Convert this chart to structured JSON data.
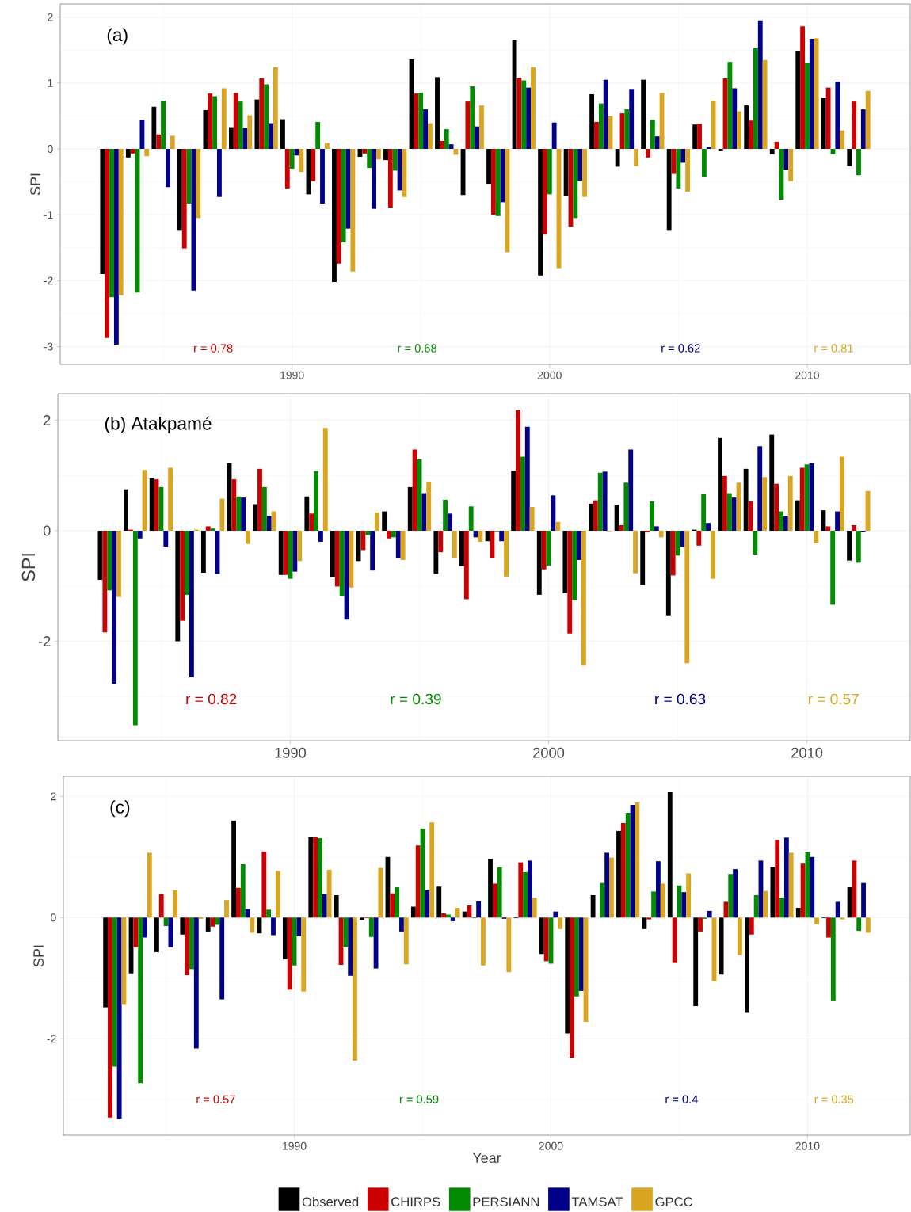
{
  "chart_data": [
    {
      "type": "bar",
      "title": "(a)",
      "ylabel": "SPI",
      "x": [
        1983,
        1984,
        1985,
        1986,
        1987,
        1988,
        1989,
        1990,
        1991,
        1992,
        1993,
        1994,
        1995,
        1996,
        1997,
        1998,
        1999,
        2000,
        2001,
        2002,
        2003,
        2004,
        2005,
        2006,
        2007,
        2008,
        2009,
        2010,
        2011,
        2012
      ],
      "series": [
        {
          "color": "#000000",
          "values": [
            -1.9,
            -0.13,
            0.64,
            -1.23,
            0.59,
            0.33,
            0.75,
            0.45,
            -0.69,
            -2.02,
            -0.12,
            -0.17,
            1.36,
            1.09,
            -0.7,
            -0.53,
            1.65,
            -1.92,
            -0.72,
            0.83,
            -0.27,
            1.05,
            -1.23,
            0.37,
            -0.03,
            0.66,
            -0.08,
            1.49,
            0.77,
            -0.26
          ]
        },
        {
          "color": "#cc0000",
          "values": [
            -2.87,
            -0.07,
            0.22,
            -1.51,
            0.84,
            0.85,
            1.07,
            -0.6,
            -0.49,
            -1.74,
            -0.07,
            -0.89,
            0.84,
            0.12,
            0.72,
            -1.0,
            1.08,
            -1.3,
            -1.18,
            0.41,
            0.54,
            -0.13,
            -0.38,
            0.38,
            1.07,
            0.43,
            0.11,
            1.86,
            0.93,
            0.72
          ]
        },
        {
          "color": "#008b00",
          "values": [
            -2.25,
            -2.18,
            0.73,
            -0.83,
            0.8,
            0.72,
            0.98,
            -0.3,
            0.41,
            -1.42,
            -0.29,
            -0.33,
            0.85,
            0.3,
            0.95,
            -1.02,
            1.04,
            -0.69,
            -1.05,
            0.69,
            0.6,
            0.44,
            -0.6,
            -0.43,
            1.32,
            1.53,
            -0.77,
            1.3,
            -0.08,
            -0.4
          ]
        },
        {
          "color": "#00008b",
          "values": [
            -2.97,
            0.44,
            -0.58,
            -2.15,
            -0.73,
            0.32,
            0.39,
            -0.1,
            -0.83,
            -1.21,
            -0.91,
            -0.63,
            0.6,
            0.07,
            0.34,
            -0.81,
            0.93,
            0.4,
            -0.48,
            1.05,
            0.91,
            0.19,
            -0.21,
            0.03,
            0.92,
            1.95,
            -0.32,
            1.67,
            1.02,
            0.6
          ]
        },
        {
          "color": "#daa520",
          "values": [
            -2.22,
            -0.11,
            0.2,
            -1.05,
            0.92,
            0.51,
            1.24,
            -0.35,
            0.09,
            -1.86,
            -0.16,
            -0.73,
            0.39,
            -0.09,
            0.66,
            -1.57,
            1.24,
            -1.81,
            -0.73,
            0.5,
            -0.26,
            0.85,
            -0.65,
            0.73,
            0.57,
            1.35,
            -0.49,
            1.68,
            0.28,
            0.88
          ]
        }
      ],
      "xlim": [
        1981,
        2014
      ],
      "xticks": [
        1990,
        2000,
        2010
      ],
      "ylim": [
        -3.27,
        2.2
      ],
      "yticks": [
        -3,
        -2,
        -1,
        0,
        1,
        2
      ],
      "grid": true,
      "annotations": [
        "r = 0.78",
        "r = 0.68",
        "r = 0.62",
        "r = 0.81"
      ]
    },
    {
      "type": "bar",
      "title": "(b) Atakpamé",
      "ylabel": "SPI",
      "x": [
        1983,
        1984,
        1985,
        1986,
        1987,
        1988,
        1989,
        1990,
        1991,
        1992,
        1993,
        1994,
        1995,
        1996,
        1997,
        1998,
        1999,
        2000,
        2001,
        2002,
        2003,
        2004,
        2005,
        2006,
        2007,
        2008,
        2009,
        2010,
        2011,
        2012
      ],
      "series": [
        {
          "color": "#000000",
          "values": [
            -0.89,
            0.75,
            0.95,
            -2.0,
            -0.76,
            1.22,
            0.48,
            -0.8,
            0.62,
            -0.84,
            -0.55,
            0.35,
            0.79,
            -0.78,
            -0.64,
            -0.19,
            1.09,
            -1.16,
            -1.13,
            0.49,
            0.47,
            -0.98,
            -1.53,
            0.02,
            1.68,
            1.12,
            1.74,
            0.55,
            0.37,
            -0.54
          ]
        },
        {
          "color": "#cc0000",
          "values": [
            -1.84,
            0.02,
            0.93,
            -1.63,
            0.08,
            0.93,
            1.12,
            -0.8,
            0.31,
            -1.01,
            -0.35,
            -0.14,
            1.47,
            -0.39,
            -1.24,
            -0.49,
            2.18,
            -0.7,
            -1.86,
            0.55,
            0.1,
            -0.03,
            -0.81,
            -0.27,
            0.99,
            0.53,
            0.85,
            1.14,
            0.08,
            0.1
          ]
        },
        {
          "color": "#008b00",
          "values": [
            -1.08,
            -3.52,
            0.79,
            -1.16,
            0.04,
            0.62,
            0.79,
            -0.87,
            1.08,
            -1.18,
            -0.08,
            -0.12,
            1.29,
            0.56,
            0.44,
            -0.01,
            1.34,
            -0.63,
            -1.26,
            1.05,
            0.87,
            0.53,
            -0.45,
            0.66,
            0.68,
            -0.43,
            0.35,
            1.2,
            -1.34,
            -0.58
          ]
        },
        {
          "color": "#00008b",
          "values": [
            -2.77,
            -0.14,
            -0.29,
            -2.65,
            -0.78,
            0.6,
            0.27,
            -0.74,
            -0.2,
            -1.61,
            -0.72,
            -0.49,
            0.68,
            0.31,
            -0.12,
            -0.19,
            1.88,
            0.64,
            -0.53,
            1.07,
            1.47,
            0.08,
            -0.29,
            0.14,
            0.6,
            1.53,
            0.27,
            1.22,
            0.35,
            -0.02
          ]
        },
        {
          "color": "#daa520",
          "values": [
            -1.2,
            1.1,
            1.14,
            0.02,
            0.58,
            -0.24,
            0.35,
            -0.55,
            1.86,
            -1.03,
            0.33,
            -0.53,
            0.89,
            -0.49,
            -0.2,
            -0.83,
            0.43,
            0.16,
            -2.44,
            -0.01,
            -0.77,
            -0.12,
            -2.4,
            -0.87,
            0.87,
            0.97,
            0.99,
            -0.23,
            1.34,
            0.72
          ]
        }
      ],
      "xlim": [
        1981,
        2014
      ],
      "xticks": [
        1990,
        2000,
        2010
      ],
      "ylim": [
        -3.8,
        2.48
      ],
      "yticks": [
        -2,
        0,
        2
      ],
      "grid": true,
      "annotations": [
        "r = 0.82",
        "r = 0.39",
        "r = 0.63",
        "r = 0.57"
      ]
    },
    {
      "type": "bar",
      "title": "(c)",
      "xlabel": "Year",
      "ylabel": "SPI",
      "x": [
        1983,
        1984,
        1985,
        1986,
        1987,
        1988,
        1989,
        1990,
        1991,
        1992,
        1993,
        1994,
        1995,
        1996,
        1997,
        1998,
        1999,
        2000,
        2001,
        2002,
        2003,
        2004,
        2005,
        2006,
        2007,
        2008,
        2009,
        2010,
        2011,
        2012
      ],
      "series": [
        {
          "name": "Observed",
          "color": "#000000",
          "values": [
            -1.48,
            -0.92,
            -0.57,
            -0.28,
            -0.23,
            1.6,
            -0.26,
            -0.69,
            1.33,
            0.37,
            -0.04,
            1.0,
            0.18,
            0.51,
            0.1,
            0.97,
            -0.01,
            -0.6,
            -1.91,
            0.37,
            1.43,
            -0.19,
            2.07,
            -1.46,
            -0.94,
            -1.57,
            0.84,
            0.16,
            -0.01,
            0.5
          ]
        },
        {
          "name": "CHIRPS",
          "color": "#cc0000",
          "values": [
            -3.3,
            -0.49,
            0.39,
            -0.95,
            -0.15,
            0.49,
            1.09,
            -1.19,
            1.33,
            -0.78,
            -0.01,
            0.4,
            1.19,
            0.07,
            0.2,
            0.56,
            0.91,
            -0.72,
            -2.31,
            0.0,
            1.56,
            -0.03,
            -0.75,
            -0.23,
            0.26,
            -0.28,
            1.28,
            0.89,
            -0.33,
            0.94
          ]
        },
        {
          "name": "PERSIANN",
          "color": "#008b00",
          "values": [
            -2.46,
            -2.73,
            -0.14,
            -0.85,
            -0.12,
            0.88,
            0.13,
            -0.79,
            1.31,
            -0.49,
            -0.32,
            0.5,
            1.47,
            0.05,
            -0.01,
            0.83,
            0.75,
            -0.76,
            -1.3,
            0.57,
            1.73,
            0.43,
            0.53,
            -0.02,
            0.72,
            0.37,
            0.33,
            1.08,
            -1.38,
            -0.22
          ]
        },
        {
          "name": "TAMSAT",
          "color": "#00008b",
          "values": [
            -3.32,
            -0.33,
            -0.49,
            -2.16,
            -1.35,
            0.14,
            -0.29,
            -0.31,
            0.39,
            -0.96,
            -0.84,
            -0.23,
            0.45,
            -0.06,
            0.27,
            -0.02,
            0.94,
            0.1,
            -1.21,
            1.07,
            1.86,
            0.93,
            0.42,
            0.11,
            0.8,
            0.94,
            1.32,
            1.0,
            0.26,
            0.57
          ]
        },
        {
          "name": "GPCC",
          "color": "#daa520",
          "values": [
            -1.44,
            1.07,
            0.45,
            -0.02,
            0.29,
            -0.25,
            0.77,
            -1.22,
            0.79,
            -2.36,
            0.82,
            -0.77,
            1.57,
            0.16,
            -0.79,
            -0.9,
            0.33,
            -0.19,
            -1.72,
            0.99,
            1.9,
            0.56,
            0.73,
            -1.05,
            -0.62,
            0.44,
            1.07,
            -0.11,
            -0.03,
            -0.25
          ]
        }
      ],
      "xlim": [
        1981,
        2014
      ],
      "xticks": [
        1990,
        2000,
        2010
      ],
      "ylim": [
        -3.59,
        2.33
      ],
      "yticks": [
        -2,
        0,
        2
      ],
      "grid": true,
      "legend": "bottom",
      "annotations": [
        "r = 0.57",
        "r = 0.59",
        "r = 0.4",
        "r = 0.35"
      ]
    }
  ]
}
